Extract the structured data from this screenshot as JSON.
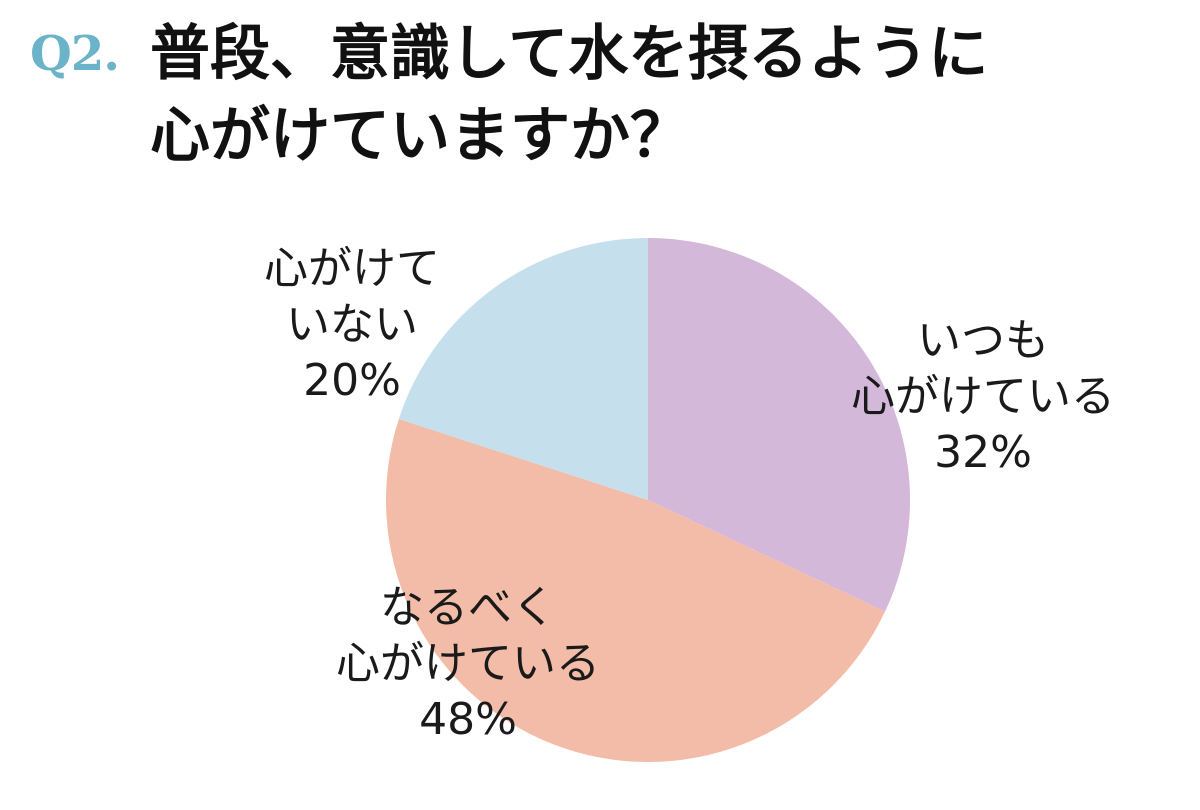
{
  "question": {
    "number": "Q2.",
    "line1": "普段、意識して水を摂るように",
    "line2": "心がけていますか？"
  },
  "chart_data": {
    "type": "pie",
    "start_angle_deg": 0,
    "direction": "clockwise",
    "slices": [
      {
        "label_lines": [
          "いつも",
          "心がけている"
        ],
        "value": 32,
        "value_label": "32%",
        "color": "#d4b8da"
      },
      {
        "label_lines": [
          "なるべく",
          "心がけている"
        ],
        "value": 48,
        "value_label": "48%",
        "color": "#f3bca8"
      },
      {
        "label_lines": [
          "心がけて",
          "いない"
        ],
        "value": 20,
        "value_label": "20%",
        "color": "#c5e0ec"
      }
    ]
  }
}
